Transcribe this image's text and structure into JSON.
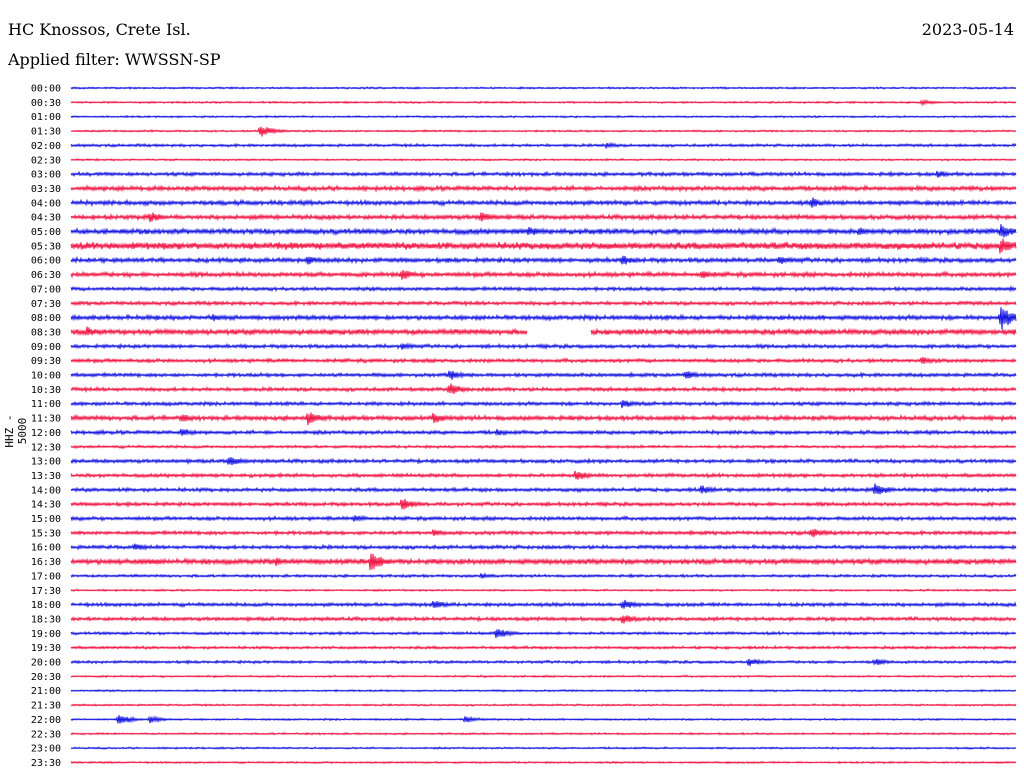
{
  "header": {
    "station": "HC Knossos, Crete Isl.",
    "date": "2023-05-14",
    "filter": "Applied filter: WWSSN-SP",
    "channel": "HHZ - 5000"
  },
  "colors": {
    "even_row": "#1010e0",
    "odd_row": "#f01040",
    "background": "#ffffff"
  },
  "chart_data": {
    "type": "line",
    "title": "HC Knossos, Crete Isl.",
    "subtitle": "Applied filter: WWSSN-SP",
    "ylabel": "HHZ - 5000",
    "xlabel": "",
    "y_ticks": [
      "00:00",
      "00:30",
      "01:00",
      "01:30",
      "02:00",
      "02:30",
      "03:00",
      "03:30",
      "04:00",
      "04:30",
      "05:00",
      "05:30",
      "06:00",
      "06:30",
      "07:00",
      "07:30",
      "08:00",
      "08:30",
      "09:00",
      "09:30",
      "10:00",
      "10:30",
      "11:00",
      "11:30",
      "12:00",
      "12:30",
      "13:00",
      "13:30",
      "14:00",
      "14:30",
      "15:00",
      "15:30",
      "16:00",
      "16:30",
      "17:00",
      "17:30",
      "18:00",
      "18:30",
      "19:00",
      "19:30",
      "20:00",
      "20:30",
      "21:00",
      "21:30",
      "22:00",
      "22:30",
      "23:00",
      "23:30"
    ],
    "row_minutes": 30,
    "row_noise": [
      1,
      1,
      1,
      1,
      1.5,
      1,
      2,
      2.5,
      2.5,
      2.5,
      3,
      4,
      2.5,
      2.5,
      2,
      2,
      2.5,
      3,
      2,
      2,
      2,
      2,
      2,
      2.5,
      2,
      1.5,
      2,
      2,
      2,
      2,
      2,
      2,
      2,
      3,
      1.5,
      1,
      2,
      2,
      1.5,
      1.5,
      1.5,
      1,
      1,
      1,
      1,
      1,
      1,
      1
    ],
    "events": [
      {
        "row": 1,
        "minute": 27,
        "amplitude": 3
      },
      {
        "row": 3,
        "minute": 6,
        "amplitude": 7
      },
      {
        "row": 4,
        "minute": 17,
        "amplitude": 3
      },
      {
        "row": 6,
        "minute": 27.5,
        "amplitude": 4
      },
      {
        "row": 8,
        "minute": 23.5,
        "amplitude": 6
      },
      {
        "row": 9,
        "minute": 2.5,
        "amplitude": 6
      },
      {
        "row": 9,
        "minute": 13,
        "amplitude": 6
      },
      {
        "row": 10,
        "minute": 14.5,
        "amplitude": 6
      },
      {
        "row": 10,
        "minute": 25,
        "amplitude": 5
      },
      {
        "row": 10,
        "minute": 29.5,
        "amplitude": 8
      },
      {
        "row": 11,
        "minute": 29.5,
        "amplitude": 9
      },
      {
        "row": 11,
        "minute": 7,
        "amplitude": 5
      },
      {
        "row": 12,
        "minute": 7.5,
        "amplitude": 5
      },
      {
        "row": 12,
        "minute": 17.5,
        "amplitude": 6
      },
      {
        "row": 12,
        "minute": 22.5,
        "amplitude": 5
      },
      {
        "row": 13,
        "minute": 10.5,
        "amplitude": 6
      },
      {
        "row": 13,
        "minute": 20,
        "amplitude": 5
      },
      {
        "row": 16,
        "minute": 4.5,
        "amplitude": 4
      },
      {
        "row": 16,
        "minute": 29.5,
        "amplitude": 14
      },
      {
        "row": 17,
        "minute": 0.5,
        "amplitude": 6
      },
      {
        "row": 18,
        "minute": 10.5,
        "amplitude": 4
      },
      {
        "row": 19,
        "minute": 27,
        "amplitude": 4
      },
      {
        "row": 20,
        "minute": 12,
        "amplitude": 6
      },
      {
        "row": 20,
        "minute": 19.5,
        "amplitude": 5
      },
      {
        "row": 21,
        "minute": 12,
        "amplitude": 7
      },
      {
        "row": 22,
        "minute": 17.5,
        "amplitude": 5
      },
      {
        "row": 23,
        "minute": 3.5,
        "amplitude": 5
      },
      {
        "row": 23,
        "minute": 7.5,
        "amplitude": 8
      },
      {
        "row": 23,
        "minute": 11.5,
        "amplitude": 6
      },
      {
        "row": 24,
        "minute": 3.5,
        "amplitude": 5
      },
      {
        "row": 24,
        "minute": 13.5,
        "amplitude": 4
      },
      {
        "row": 26,
        "minute": 5,
        "amplitude": 6
      },
      {
        "row": 27,
        "minute": 16,
        "amplitude": 6
      },
      {
        "row": 28,
        "minute": 20,
        "amplitude": 5
      },
      {
        "row": 28,
        "minute": 25.5,
        "amplitude": 8
      },
      {
        "row": 29,
        "minute": 10.5,
        "amplitude": 7
      },
      {
        "row": 30,
        "minute": 9,
        "amplitude": 4
      },
      {
        "row": 31,
        "minute": 23.5,
        "amplitude": 6
      },
      {
        "row": 31,
        "minute": 11.5,
        "amplitude": 4
      },
      {
        "row": 32,
        "minute": 2,
        "amplitude": 4
      },
      {
        "row": 33,
        "minute": 2.5,
        "amplitude": 4
      },
      {
        "row": 33,
        "minute": 6.5,
        "amplitude": 5
      },
      {
        "row": 33,
        "minute": 9.5,
        "amplitude": 11
      },
      {
        "row": 34,
        "minute": 13,
        "amplitude": 3
      },
      {
        "row": 36,
        "minute": 11.5,
        "amplitude": 5
      },
      {
        "row": 36,
        "minute": 17.5,
        "amplitude": 6
      },
      {
        "row": 37,
        "minute": 17.5,
        "amplitude": 6
      },
      {
        "row": 38,
        "minute": 13.5,
        "amplitude": 6
      },
      {
        "row": 40,
        "minute": 21.5,
        "amplitude": 5
      },
      {
        "row": 40,
        "minute": 25.5,
        "amplitude": 4
      },
      {
        "row": 44,
        "minute": 1.5,
        "amplitude": 6
      },
      {
        "row": 44,
        "minute": 2.5,
        "amplitude": 4
      },
      {
        "row": 44,
        "minute": 12.5,
        "amplitude": 4
      }
    ],
    "gaps": [
      {
        "row": 17,
        "start_minute": 14.5,
        "end_minute": 16.5
      }
    ],
    "grid": false,
    "legend": "none"
  }
}
